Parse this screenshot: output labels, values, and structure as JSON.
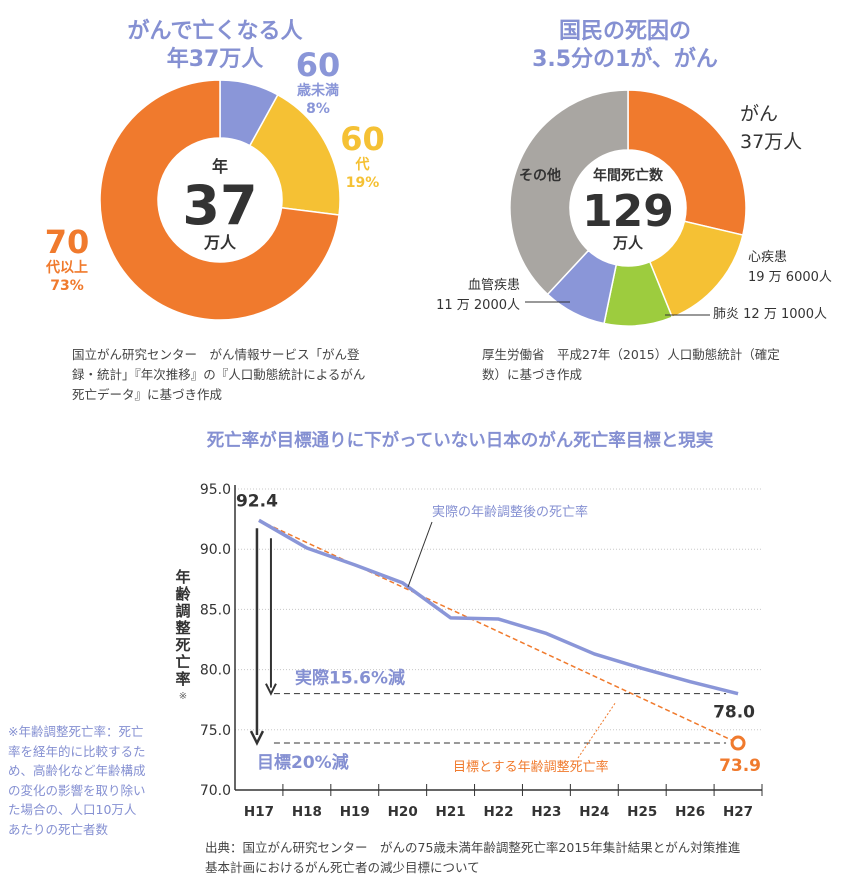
{
  "colors": {
    "orange": "#f07a2d",
    "yellow": "#f5c134",
    "blue": "#8a96d8",
    "green": "#9dcc3e",
    "gray": "#a9a6a2",
    "title_blue": "#8590d2",
    "target_orange": "#f07a2d"
  },
  "chart_data": [
    {
      "type": "pie",
      "title_line1": "がんで亡くなる人",
      "title_line2": "年37万人",
      "center": {
        "top": "年",
        "value": "37",
        "bottom": "万人"
      },
      "slices": [
        {
          "big": "60",
          "label": "歳未満",
          "pct": "8%",
          "value": 8,
          "color": "#8a96d8"
        },
        {
          "big": "60",
          "label": "代",
          "pct": "19%",
          "value": 19,
          "color": "#f5c134"
        },
        {
          "big": "70",
          "label": "代以上",
          "pct": "73%",
          "value": 73,
          "color": "#f07a2d"
        }
      ],
      "source": [
        "国立がん研究センター　がん情報サービス「がん登",
        "録・統計」『年次推移』の『人口動態統計によるがん",
        "死亡データ』に基づき作成"
      ]
    },
    {
      "type": "pie",
      "title_line1": "国民の死因の",
      "title_line2": "3.5分の1が、がん",
      "center": {
        "top": "年間死亡数",
        "value": "129",
        "bottom": "万人"
      },
      "slices": [
        {
          "name": "がん",
          "amount": "37万人",
          "value": 370000,
          "color": "#f07a2d"
        },
        {
          "name": "心疾患",
          "amount": "19 万 6000人",
          "value": 196000,
          "color": "#f5c134"
        },
        {
          "name": "肺炎",
          "amount": "12 万 1000人",
          "value": 121000,
          "color": "#9dcc3e"
        },
        {
          "name": "血管疾患",
          "amount": "11 万 2000人",
          "value": 112000,
          "color": "#8a96d8"
        },
        {
          "name": "その他",
          "amount": "",
          "value": 491000,
          "color": "#a9a6a2"
        }
      ],
      "source": [
        "厚生労働省　平成27年（2015）人口動態統計（確定",
        "数）に基づき作成"
      ]
    },
    {
      "type": "line",
      "title": "死亡率が目標通りに下がっていない日本のがん死亡率目標と現実",
      "ylabel": "年齢調整死亡率",
      "ylabel_mark": "※",
      "ylim": [
        70,
        95
      ],
      "yticks": [
        "95.0",
        "90.0",
        "85.0",
        "80.0",
        "75.0",
        "70.0"
      ],
      "ytick_values": [
        95,
        90,
        85,
        80,
        75,
        70
      ],
      "categories": [
        "H17",
        "H18",
        "H19",
        "H20",
        "H21",
        "H22",
        "H23",
        "H24",
        "H25",
        "H26",
        "H27"
      ],
      "series": [
        {
          "name": "実際の年齢調整後の死亡率",
          "values": [
            92.4,
            90.1,
            88.7,
            87.2,
            84.3,
            84.2,
            83.0,
            81.3,
            80.1,
            79.0,
            78.0
          ],
          "color": "#8a96d8"
        },
        {
          "name": "目標とする年齢調整死亡率",
          "values": [
            92.4,
            null,
            null,
            null,
            null,
            null,
            null,
            null,
            null,
            null,
            73.9
          ],
          "color": "#f07a2d"
        }
      ],
      "labels": {
        "start": "92.4",
        "end_actual": "78.0",
        "end_target": "73.9"
      },
      "annotations": {
        "actual_reduction": "実際15.6%減",
        "target_reduction": "目標20%減"
      },
      "footnote": [
        "※年齢調整死亡率：死亡",
        "率を経年的に比較するた",
        "め、高齢化など年齢構成",
        "の変化の影響を取り除い",
        "た場合の、人口10万人",
        "あたりの死亡者数"
      ],
      "source": [
        "出典：国立がん研究センター　がんの75歳未満年齢調整死亡率2015年集計結果とがん対策推進",
        "基本計画におけるがん死亡者の減少目標について"
      ]
    }
  ]
}
